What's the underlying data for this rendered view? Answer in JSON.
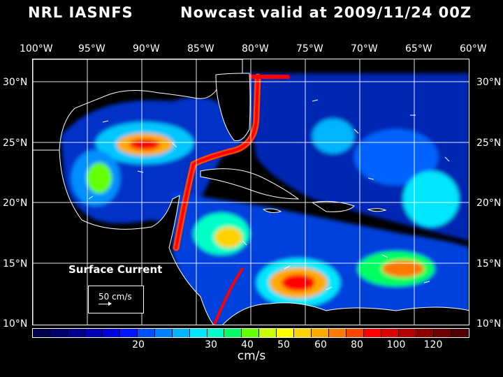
{
  "title": {
    "source": "NRL IASNFS",
    "mode": "Nowcast",
    "valid": "valid at 2009/11/24 00Z"
  },
  "lon_labels": [
    "100°W",
    "95°W",
    "90°W",
    "85°W",
    "80°W",
    "75°W",
    "70°W",
    "65°W",
    "60°W"
  ],
  "lat_labels": [
    "30°N",
    "25°N",
    "20°N",
    "15°N",
    "10°N"
  ],
  "legend": {
    "title": "Surface Current",
    "reference": "50 cm/s"
  },
  "colorbar": {
    "colors": [
      "#000050",
      "#00006e",
      "#00008c",
      "#0000b4",
      "#0000dc",
      "#0014ff",
      "#0050ff",
      "#0082ff",
      "#00b4ff",
      "#00e6ff",
      "#00ffc8",
      "#00ff64",
      "#64ff00",
      "#c8ff00",
      "#ffff00",
      "#ffd200",
      "#ffaa00",
      "#ff7800",
      "#ff4600",
      "#ff0000",
      "#dc0000",
      "#b40000",
      "#8c0000",
      "#6e0000",
      "#500000"
    ],
    "tick_labels": [
      "20",
      "30",
      "40",
      "50",
      "60",
      "80",
      "100",
      "120"
    ],
    "units": "cm/s"
  }
}
